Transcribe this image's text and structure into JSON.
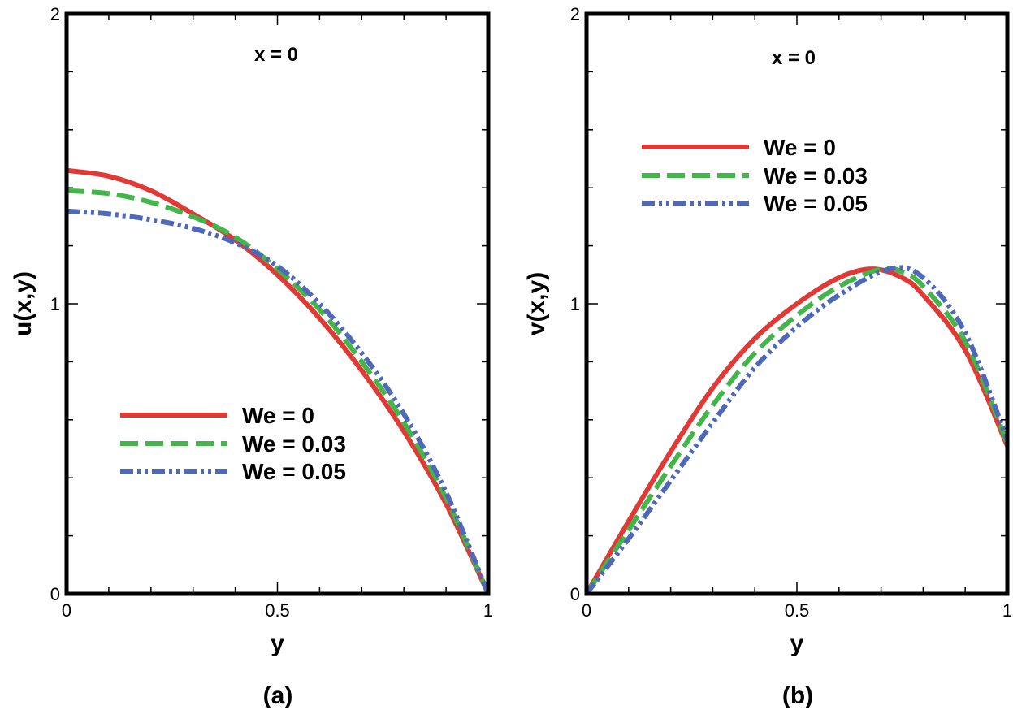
{
  "colors": {
    "red": "#e03a36",
    "green": "#44b54a",
    "blue": "#4f68b8",
    "frame": "#000000"
  },
  "chart_data": [
    {
      "type": "line",
      "panel_label": "(a)",
      "annotation": "x = 0",
      "xlabel": "y",
      "ylabel": "u(x,y)",
      "xlim": [
        0,
        1
      ],
      "ylim": [
        0,
        2
      ],
      "xticks": [
        "0",
        "0.5",
        "1"
      ],
      "yticks": [
        "0",
        "1",
        "2"
      ],
      "legend_position": "bottom-left",
      "series": [
        {
          "name": "We = 0",
          "color": "#e03a36",
          "style": "solid",
          "x": [
            0,
            0.1,
            0.2,
            0.3,
            0.4,
            0.5,
            0.6,
            0.7,
            0.8,
            0.9,
            1.0
          ],
          "y": [
            1.46,
            1.44,
            1.39,
            1.31,
            1.22,
            1.1,
            0.95,
            0.77,
            0.56,
            0.31,
            0.0
          ]
        },
        {
          "name": "We = 0.03",
          "color": "#44b54a",
          "style": "dashed",
          "x": [
            0,
            0.1,
            0.2,
            0.3,
            0.4,
            0.5,
            0.6,
            0.7,
            0.8,
            0.9,
            1.0
          ],
          "y": [
            1.39,
            1.38,
            1.35,
            1.3,
            1.23,
            1.12,
            0.98,
            0.8,
            0.59,
            0.33,
            0.0
          ]
        },
        {
          "name": "We = 0.05",
          "color": "#4f68b8",
          "style": "dashdotdot",
          "x": [
            0,
            0.1,
            0.2,
            0.3,
            0.4,
            0.5,
            0.6,
            0.7,
            0.8,
            0.9,
            1.0
          ],
          "y": [
            1.32,
            1.31,
            1.29,
            1.26,
            1.21,
            1.13,
            1.0,
            0.83,
            0.62,
            0.35,
            0.0
          ]
        }
      ]
    },
    {
      "type": "line",
      "panel_label": "(b)",
      "annotation": "x = 0",
      "xlabel": "y",
      "ylabel": "v(x,y)",
      "xlim": [
        0,
        1
      ],
      "ylim": [
        0,
        2
      ],
      "xticks": [
        "0",
        "0.5",
        "1"
      ],
      "yticks": [
        "0",
        "1",
        "2"
      ],
      "legend_position": "top-left",
      "series": [
        {
          "name": "We = 0",
          "color": "#e03a36",
          "style": "solid",
          "x": [
            0,
            0.1,
            0.2,
            0.3,
            0.4,
            0.5,
            0.6,
            0.68,
            0.75,
            0.8,
            0.9,
            1.0
          ],
          "y": [
            0.0,
            0.25,
            0.49,
            0.71,
            0.88,
            1.0,
            1.09,
            1.12,
            1.09,
            1.03,
            0.84,
            0.51
          ]
        },
        {
          "name": "We = 0.03",
          "color": "#44b54a",
          "style": "dashed",
          "x": [
            0,
            0.1,
            0.2,
            0.3,
            0.4,
            0.5,
            0.6,
            0.7,
            0.75,
            0.8,
            0.9,
            1.0
          ],
          "y": [
            0.0,
            0.22,
            0.44,
            0.65,
            0.83,
            0.96,
            1.06,
            1.12,
            1.11,
            1.06,
            0.87,
            0.52
          ]
        },
        {
          "name": "We = 0.05",
          "color": "#4f68b8",
          "style": "dashdotdot",
          "x": [
            0,
            0.1,
            0.2,
            0.3,
            0.4,
            0.5,
            0.6,
            0.72,
            0.8,
            0.9,
            1.0
          ],
          "y": [
            0.0,
            0.19,
            0.39,
            0.59,
            0.78,
            0.92,
            1.03,
            1.12,
            1.09,
            0.9,
            0.53
          ]
        }
      ]
    }
  ]
}
